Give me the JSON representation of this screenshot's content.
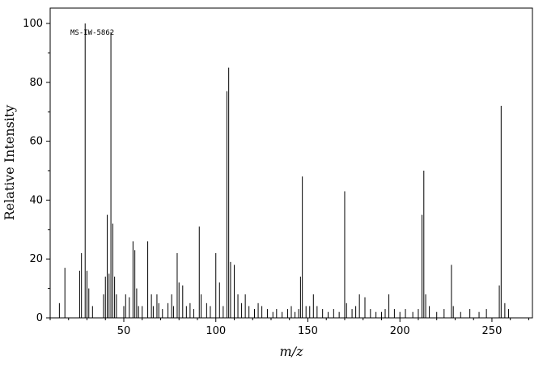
{
  "window": {
    "background": "#ffffff",
    "foreground": "#000000"
  },
  "chart_data": {
    "type": "bar",
    "subtype": "mass-spectrum-stick-plot",
    "title": "",
    "xlabel": "m/z",
    "ylabel": "Relative Intensity",
    "annotation": "MS-IW-5862",
    "xlim": [
      10,
      272
    ],
    "ylim": [
      0,
      100
    ],
    "x_ticks": [
      50,
      100,
      150,
      200,
      250
    ],
    "y_ticks": [
      0,
      20,
      40,
      60,
      80,
      100
    ],
    "x_minor_tick_step": 10,
    "y_minor_tick_step": 10,
    "grid": false,
    "legend": false,
    "line_color": "#000000",
    "peaks": [
      [
        15,
        5
      ],
      [
        18,
        17
      ],
      [
        26,
        16
      ],
      [
        27,
        22
      ],
      [
        29,
        100
      ],
      [
        30,
        16
      ],
      [
        31,
        10
      ],
      [
        33,
        4
      ],
      [
        39,
        8
      ],
      [
        40,
        14
      ],
      [
        41,
        35
      ],
      [
        42,
        15
      ],
      [
        43,
        97
      ],
      [
        44,
        32
      ],
      [
        45,
        14
      ],
      [
        46,
        8
      ],
      [
        50,
        4
      ],
      [
        51,
        8
      ],
      [
        53,
        7
      ],
      [
        55,
        26
      ],
      [
        56,
        23
      ],
      [
        57,
        10
      ],
      [
        58,
        4
      ],
      [
        60,
        4
      ],
      [
        63,
        26
      ],
      [
        65,
        8
      ],
      [
        66,
        4
      ],
      [
        68,
        8
      ],
      [
        69,
        5
      ],
      [
        71,
        3
      ],
      [
        74,
        5
      ],
      [
        76,
        8
      ],
      [
        77,
        4
      ],
      [
        79,
        22
      ],
      [
        80,
        12
      ],
      [
        82,
        11
      ],
      [
        84,
        4
      ],
      [
        86,
        5
      ],
      [
        88,
        3
      ],
      [
        91,
        31
      ],
      [
        92,
        8
      ],
      [
        95,
        5
      ],
      [
        97,
        4
      ],
      [
        100,
        22
      ],
      [
        102,
        12
      ],
      [
        104,
        4
      ],
      [
        106,
        77
      ],
      [
        107,
        85
      ],
      [
        108,
        19
      ],
      [
        110,
        18
      ],
      [
        112,
        8
      ],
      [
        114,
        5
      ],
      [
        116,
        8
      ],
      [
        118,
        4
      ],
      [
        121,
        3
      ],
      [
        123,
        5
      ],
      [
        125,
        4
      ],
      [
        128,
        3
      ],
      [
        131,
        2
      ],
      [
        133,
        3
      ],
      [
        136,
        2
      ],
      [
        139,
        3
      ],
      [
        141,
        4
      ],
      [
        143,
        2
      ],
      [
        145,
        3
      ],
      [
        146,
        14
      ],
      [
        147,
        48
      ],
      [
        149,
        4
      ],
      [
        151,
        4
      ],
      [
        153,
        8
      ],
      [
        155,
        4
      ],
      [
        158,
        3
      ],
      [
        161,
        2
      ],
      [
        164,
        3
      ],
      [
        167,
        2
      ],
      [
        170,
        43
      ],
      [
        171,
        5
      ],
      [
        174,
        3
      ],
      [
        176,
        4
      ],
      [
        178,
        8
      ],
      [
        181,
        7
      ],
      [
        184,
        3
      ],
      [
        187,
        2
      ],
      [
        190,
        2
      ],
      [
        192,
        3
      ],
      [
        194,
        8
      ],
      [
        197,
        3
      ],
      [
        200,
        2
      ],
      [
        203,
        3
      ],
      [
        207,
        2
      ],
      [
        210,
        3
      ],
      [
        212,
        35
      ],
      [
        213,
        50
      ],
      [
        214,
        8
      ],
      [
        216,
        4
      ],
      [
        220,
        2
      ],
      [
        224,
        3
      ],
      [
        228,
        18
      ],
      [
        229,
        4
      ],
      [
        233,
        2
      ],
      [
        238,
        3
      ],
      [
        243,
        2
      ],
      [
        247,
        3
      ],
      [
        254,
        11
      ],
      [
        255,
        72
      ],
      [
        257,
        5
      ],
      [
        259,
        3
      ]
    ]
  }
}
